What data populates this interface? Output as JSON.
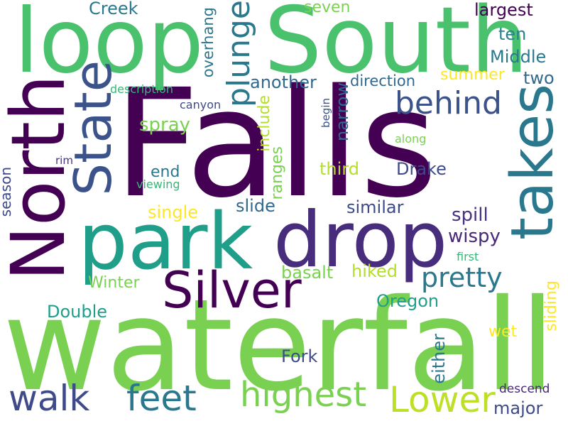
{
  "palette": {
    "deep_purple": "#440154",
    "indigo": "#3e4a89",
    "slate_blue": "#31688e",
    "teal_blue": "#26828e",
    "teal_green": "#1f9e89",
    "green": "#35b779",
    "light_green": "#6ece58",
    "lime": "#b5de2b",
    "yellow": "#fde725"
  },
  "words": [
    {
      "text": "Falls",
      "color": "#440154"
    },
    {
      "text": "waterfall",
      "color": "#7ad151"
    },
    {
      "text": "South",
      "color": "#4ac16d"
    },
    {
      "text": "loop",
      "color": "#4ac16d"
    },
    {
      "text": "North",
      "color": "#440154"
    },
    {
      "text": "park",
      "color": "#1f9e89"
    },
    {
      "text": "drop",
      "color": "#472d7b"
    },
    {
      "text": "takes",
      "color": "#2a788e"
    },
    {
      "text": "State",
      "color": "#3b528b"
    },
    {
      "text": "Silver",
      "color": "#440154"
    },
    {
      "text": "behind",
      "color": "#3b528b"
    },
    {
      "text": "plunge",
      "color": "#2a788e"
    },
    {
      "text": "highest",
      "color": "#7ad151"
    },
    {
      "text": "Lower",
      "color": "#bddf26"
    },
    {
      "text": "feet",
      "color": "#2a788e"
    },
    {
      "text": "walk",
      "color": "#3e4a89"
    },
    {
      "text": "pretty",
      "color": "#2a788e"
    },
    {
      "text": "Creek",
      "color": "#2a788e"
    },
    {
      "text": "seven",
      "color": "#7ad151"
    },
    {
      "text": "largest",
      "color": "#440154"
    },
    {
      "text": "overhang",
      "color": "#2a788e"
    },
    {
      "text": "ten",
      "color": "#26828e"
    },
    {
      "text": "Middle",
      "color": "#2a788e"
    },
    {
      "text": "summer",
      "color": "#fde725"
    },
    {
      "text": "two",
      "color": "#31688e"
    },
    {
      "text": "another",
      "color": "#31688e"
    },
    {
      "text": "direction",
      "color": "#31688e"
    },
    {
      "text": "description",
      "color": "#35b779"
    },
    {
      "text": "canyon",
      "color": "#3e4a89"
    },
    {
      "text": "begin",
      "color": "#3b528b"
    },
    {
      "text": "along",
      "color": "#7ad151"
    },
    {
      "text": "spray",
      "color": "#7ad151"
    },
    {
      "text": "include",
      "color": "#b5de2b"
    },
    {
      "text": "narrow",
      "color": "#31688e"
    },
    {
      "text": "rim",
      "color": "#46327e"
    },
    {
      "text": "end",
      "color": "#2a788e"
    },
    {
      "text": "ranges",
      "color": "#7ad151"
    },
    {
      "text": "third",
      "color": "#b5de2b"
    },
    {
      "text": "Drake",
      "color": "#3e4a89"
    },
    {
      "text": "viewing",
      "color": "#35b779"
    },
    {
      "text": "season",
      "color": "#3e4a89"
    },
    {
      "text": "single",
      "color": "#fde725"
    },
    {
      "text": "slide",
      "color": "#31688e"
    },
    {
      "text": "similar",
      "color": "#3e4a89"
    },
    {
      "text": "spill",
      "color": "#46327e"
    },
    {
      "text": "wispy",
      "color": "#482878"
    },
    {
      "text": "first",
      "color": "#35b779"
    },
    {
      "text": "basalt",
      "color": "#7ad151"
    },
    {
      "text": "hiked",
      "color": "#b5de2b"
    },
    {
      "text": "Winter",
      "color": "#7ad151"
    },
    {
      "text": "sliding",
      "color": "#fde725"
    },
    {
      "text": "Oregon",
      "color": "#1f9e89"
    },
    {
      "text": "Double",
      "color": "#1f9e89"
    },
    {
      "text": "wet",
      "color": "#fde725"
    },
    {
      "text": "Fork",
      "color": "#3e4a89"
    },
    {
      "text": "either",
      "color": "#2a788e"
    },
    {
      "text": "descend",
      "color": "#482878"
    },
    {
      "text": "major",
      "color": "#3e4a89"
    }
  ]
}
